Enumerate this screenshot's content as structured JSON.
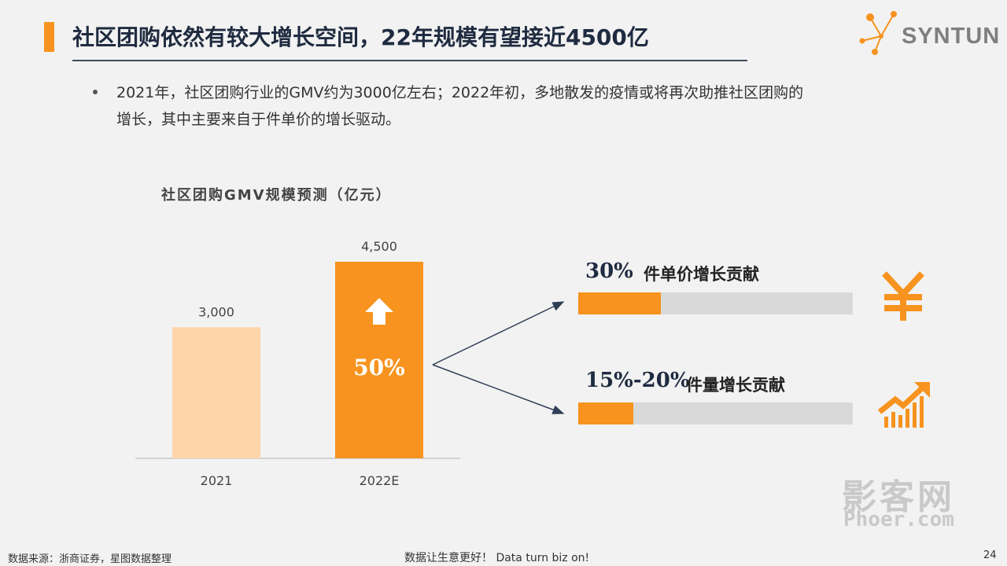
{
  "header": {
    "title": "社区团购依然有较大增长空间，22年规模有望接近4500亿",
    "logo_text": "SYNTUN"
  },
  "bullet": {
    "line1": "2021年，社区团购行业的GMV约为3000亿左右；2022年初，多地散发的疫情或将再次助推社区团购的",
    "line2": "增长，其中主要来自于件单价的增长驱动。"
  },
  "chart_data": {
    "type": "bar",
    "title": "社区团购GMV规模预测（亿元）",
    "categories": [
      "2021",
      "2022E"
    ],
    "values": [
      3000,
      4500
    ],
    "value_labels": [
      "3,000",
      "4,500"
    ],
    "bar_colors": [
      "#fdd5a9",
      "#f7931e"
    ],
    "ylim": [
      0,
      4500
    ],
    "growth_label": "50%",
    "grid": false
  },
  "drivers": [
    {
      "pct": "30%",
      "label": "件单价增长贡献",
      "share": 0.3,
      "icon": "yen-icon"
    },
    {
      "pct": "15%-20%",
      "label": "件量增长贡献",
      "share": 0.2,
      "icon": "growth-chart-icon"
    }
  ],
  "colors": {
    "accent": "#f7931e",
    "light_accent": "#fdd5a9",
    "navy": "#1f2b40",
    "track": "#d9d9d9"
  },
  "footer": {
    "source": "数据来源：浙商证券，星图数据整理",
    "slogan": "数据让生意更好！ Data turn biz on!",
    "page": "24"
  },
  "watermark": {
    "cn": "影客网",
    "en": "Phoer.com"
  }
}
